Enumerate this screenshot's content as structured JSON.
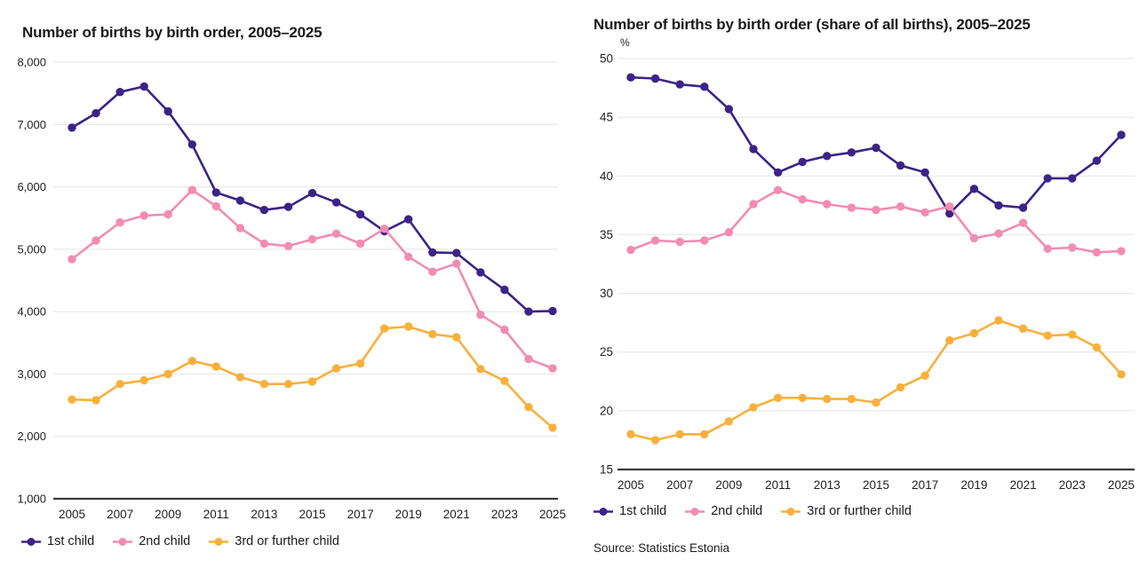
{
  "source_note": "Source: Statistics Estonia",
  "colors": {
    "first_child": "#3b2487",
    "second_child": "#f28cb2",
    "third_child": "#f8b03c",
    "gridline": "#e4e4e4",
    "axis_line": "#3c3c3c",
    "text": "#1e1e1e"
  },
  "chart_data": [
    {
      "type": "line",
      "title": "Number of births by birth order, 2005–2025",
      "xlabel": "",
      "ylabel": "",
      "unit_label": "",
      "grid": true,
      "legend_position": "bottom",
      "ylim": [
        1000,
        8000
      ],
      "x": [
        2005,
        2006,
        2007,
        2008,
        2009,
        2010,
        2011,
        2012,
        2013,
        2014,
        2015,
        2016,
        2017,
        2018,
        2019,
        2020,
        2021,
        2022,
        2023,
        2024,
        2025
      ],
      "x_tick_labels": [
        "2005",
        "2007",
        "2009",
        "2011",
        "2013",
        "2015",
        "2017",
        "2019",
        "2021",
        "2023",
        "2025"
      ],
      "y_tick_values": [
        1000,
        2000,
        3000,
        4000,
        5000,
        6000,
        7000,
        8000
      ],
      "y_tick_labels": [
        "1,000",
        "2,000",
        "3,000",
        "4,000",
        "5,000",
        "6,000",
        "7,000",
        "8,000"
      ],
      "series": [
        {
          "name": "1st child",
          "color": "#3b2487",
          "values": [
            6950,
            7180,
            7520,
            7610,
            7210,
            6680,
            5910,
            5780,
            5630,
            5680,
            5900,
            5750,
            5560,
            5290,
            5480,
            4950,
            4940,
            4630,
            4350,
            4000,
            4010
          ]
        },
        {
          "name": "2nd child",
          "color": "#f28cb2",
          "values": [
            4840,
            5140,
            5430,
            5540,
            5560,
            5950,
            5690,
            5340,
            5090,
            5050,
            5160,
            5250,
            5090,
            5330,
            4880,
            4640,
            4770,
            3950,
            3710,
            3240,
            3090
          ]
        },
        {
          "name": "3rd or further child",
          "color": "#f8b03c",
          "values": [
            2590,
            2580,
            2840,
            2900,
            3000,
            3210,
            3120,
            2950,
            2840,
            2840,
            2880,
            3090,
            3170,
            3730,
            3760,
            3640,
            3590,
            3080,
            2890,
            2470,
            2140
          ]
        }
      ]
    },
    {
      "type": "line",
      "title": "Number of births by birth order (share of all births), 2005–2025",
      "xlabel": "",
      "ylabel": "",
      "unit_label": "%",
      "grid": true,
      "legend_position": "bottom",
      "ylim": [
        15,
        50
      ],
      "x": [
        2005,
        2006,
        2007,
        2008,
        2009,
        2010,
        2011,
        2012,
        2013,
        2014,
        2015,
        2016,
        2017,
        2018,
        2019,
        2020,
        2021,
        2022,
        2023,
        2024,
        2025
      ],
      "x_tick_labels": [
        "2005",
        "2007",
        "2009",
        "2011",
        "2013",
        "2015",
        "2017",
        "2019",
        "2021",
        "2023",
        "2025"
      ],
      "y_tick_values": [
        15,
        20,
        25,
        30,
        35,
        40,
        45,
        50
      ],
      "y_tick_labels": [
        "15",
        "20",
        "25",
        "30",
        "35",
        "40",
        "45",
        "50"
      ],
      "series": [
        {
          "name": "1st child",
          "color": "#3b2487",
          "values": [
            48.4,
            48.3,
            47.8,
            47.6,
            45.7,
            42.3,
            40.3,
            41.2,
            41.7,
            42.0,
            42.4,
            40.9,
            40.3,
            36.8,
            38.9,
            37.5,
            37.3,
            39.8,
            39.8,
            41.3,
            43.5
          ]
        },
        {
          "name": "2nd child",
          "color": "#f28cb2",
          "values": [
            33.7,
            34.5,
            34.4,
            34.5,
            35.2,
            37.6,
            38.8,
            38.0,
            37.6,
            37.3,
            37.1,
            37.4,
            36.9,
            37.4,
            34.7,
            35.1,
            36.0,
            33.8,
            33.9,
            33.5,
            33.6
          ]
        },
        {
          "name": "3rd or further child",
          "color": "#f8b03c",
          "values": [
            18.0,
            17.5,
            18.0,
            18.0,
            19.1,
            20.3,
            21.1,
            21.1,
            21.0,
            21.0,
            20.7,
            22.0,
            23.0,
            26.0,
            26.6,
            27.7,
            27.0,
            26.4,
            26.5,
            25.4,
            23.1
          ]
        }
      ]
    }
  ]
}
